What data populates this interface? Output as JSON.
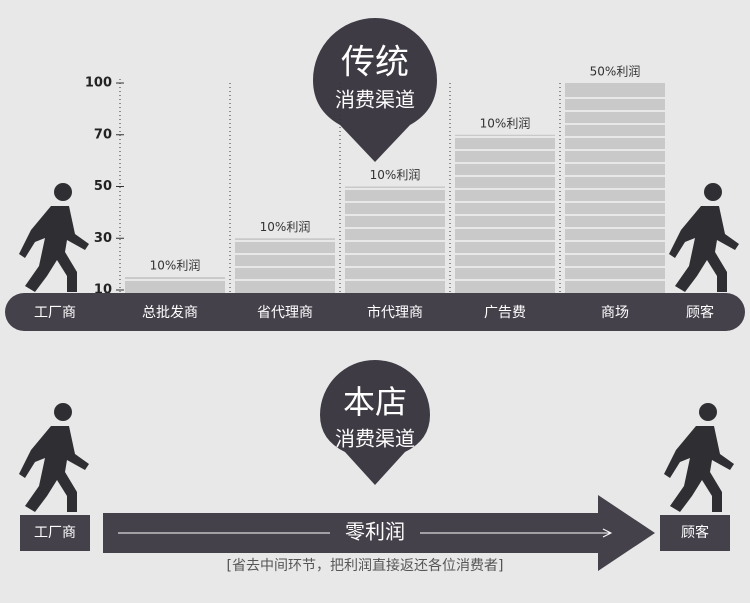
{
  "traditional": {
    "title": "传统",
    "subtitle": "消费渠道",
    "start": "工厂商",
    "end": "顾客"
  },
  "chart_data": {
    "type": "bar",
    "categories": [
      "总批发商",
      "省代理商",
      "市代理商",
      "广告费",
      "商场"
    ],
    "values": [
      15,
      30,
      50,
      70,
      100
    ],
    "value_labels": [
      "10%利润",
      "10%利润",
      "10%利润",
      "10%利润",
      "50%利润"
    ],
    "color": "#c9c9c9",
    "ylim": [
      10,
      100
    ],
    "yticks": [
      10,
      30,
      50,
      70,
      100
    ]
  },
  "store": {
    "title": "本店",
    "subtitle": "消费渠道",
    "start": "工厂商",
    "middle": "零利润",
    "end": "顾客",
    "caption": "[省去中间环节，把利润直接返还各位消费者]"
  }
}
